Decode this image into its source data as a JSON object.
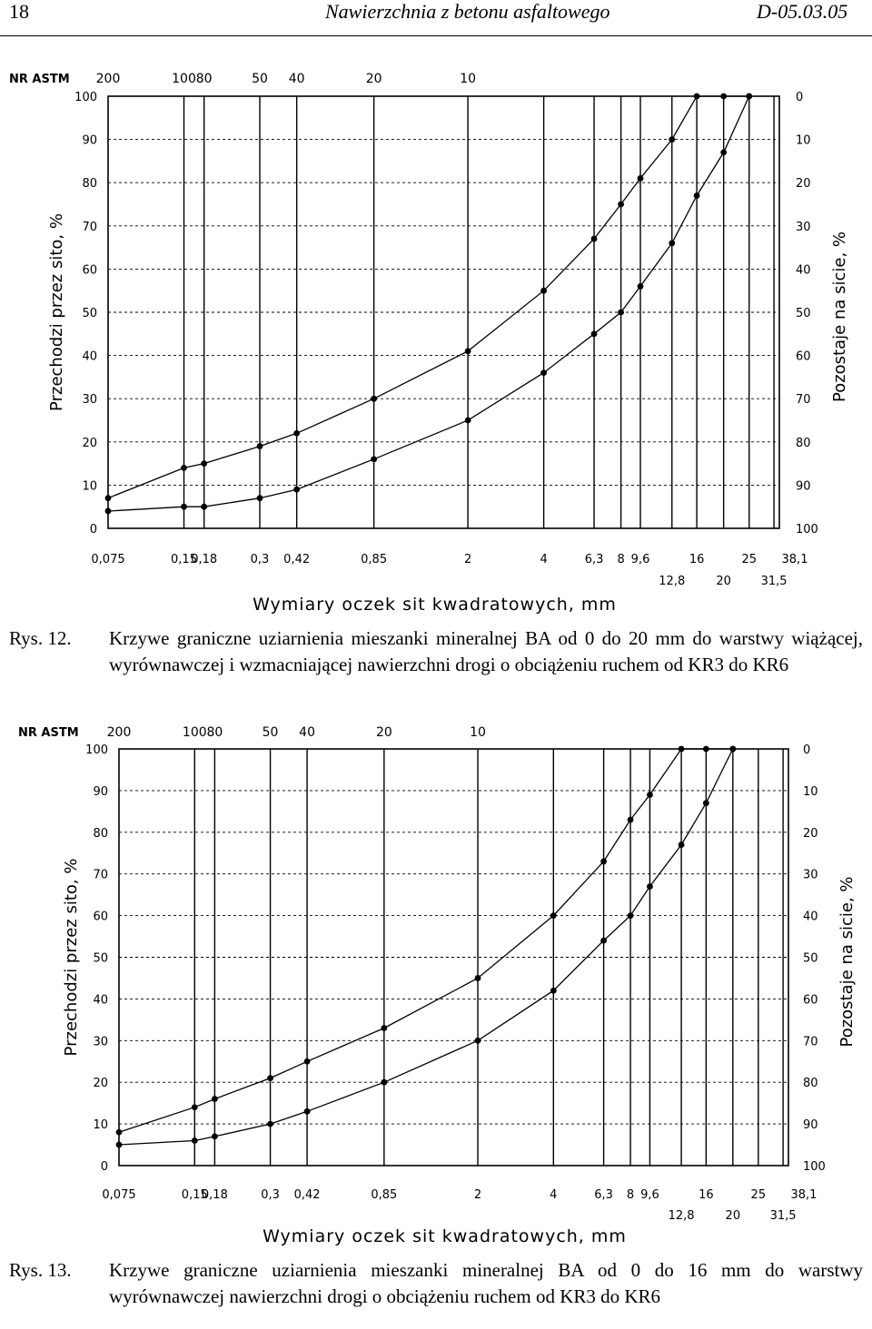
{
  "header": {
    "page_number": "18",
    "title": "Nawierzchnia z betonu asfaltowego",
    "code": "D-05.03.05"
  },
  "figures": [
    {
      "label": "Rys. 12.",
      "caption": "Krzywe graniczne uziarnienia mieszanki mineralnej BA od 0 do 20 mm do warstwy wiążącej, wyrównawczej i wzmacniającej nawierzchni drogi o obciążeniu ruchem od KR3 do KR6"
    },
    {
      "label": "Rys. 13.",
      "caption": "Krzywe graniczne uziarnienia mieszanki mineralnej BA od 0 do 16 mm do warstwy wyrównawczej nawierzchni drogi o obciążeniu ruchem od KR3 do KR6"
    }
  ],
  "chart_data": [
    {
      "type": "line",
      "astm_label": "NR ASTM",
      "astm_numbers": [
        "200",
        "100",
        "80",
        "50",
        "40",
        "20",
        "10"
      ],
      "xlabel": "Wymiary oczek sit kwadratowych, mm",
      "ylabel_left": "Przechodzi przez sito, %",
      "ylabel_right": "Pozostaje na sicie, %",
      "ylim": [
        0,
        100
      ],
      "y_ticks_left": [
        "0",
        "10",
        "20",
        "30",
        "40",
        "50",
        "60",
        "70",
        "80",
        "90",
        "100"
      ],
      "y_ticks_right": [
        "100",
        "90",
        "80",
        "70",
        "60",
        "50",
        "40",
        "30",
        "20",
        "10",
        "0"
      ],
      "x_ticks_row1": [
        "0,075",
        "0,15",
        "0,18",
        "0,3",
        "0,42",
        "0,85",
        "2",
        "4",
        "6,3",
        "8",
        "9,6",
        "16",
        "25",
        "38,1"
      ],
      "x_ticks_row2": [
        "12,8",
        "20",
        "31,5"
      ],
      "series": [
        {
          "x": [
            0.075,
            0.15,
            0.18,
            0.3,
            0.42,
            0.85,
            2,
            4,
            6.3,
            8,
            9.6,
            12.8,
            16,
            20,
            25
          ],
          "y": [
            7,
            14,
            15,
            19,
            22,
            30,
            41,
            55,
            67,
            75,
            81,
            90,
            100,
            100,
            100
          ]
        },
        {
          "x": [
            0.075,
            0.15,
            0.18,
            0.3,
            0.42,
            0.85,
            2,
            4,
            6.3,
            8,
            9.6,
            12.8,
            16,
            20,
            25
          ],
          "y": [
            4,
            5,
            5,
            7,
            9,
            16,
            25,
            36,
            45,
            50,
            56,
            66,
            77,
            87,
            100
          ]
        }
      ]
    },
    {
      "type": "line",
      "astm_label": "NR ASTM",
      "astm_numbers": [
        "200",
        "100",
        "80",
        "50",
        "40",
        "20",
        "10"
      ],
      "xlabel": "Wymiary oczek sit kwadratowych, mm",
      "ylabel_left": "Przechodzi przez sito, %",
      "ylabel_right": "Pozostaje na sicie, %",
      "ylim": [
        0,
        100
      ],
      "y_ticks_left": [
        "0",
        "10",
        "20",
        "30",
        "40",
        "50",
        "60",
        "70",
        "80",
        "90",
        "100"
      ],
      "y_ticks_right": [
        "100",
        "90",
        "80",
        "70",
        "60",
        "50",
        "40",
        "30",
        "20",
        "10",
        "0"
      ],
      "x_ticks_row1": [
        "0,075",
        "0,15",
        "0,18",
        "0,3",
        "0,42",
        "0,85",
        "2",
        "4",
        "6,3",
        "8",
        "9,6",
        "16",
        "25",
        "38,1"
      ],
      "x_ticks_row2": [
        "12,8",
        "20",
        "31,5"
      ],
      "series": [
        {
          "x": [
            0.075,
            0.15,
            0.18,
            0.3,
            0.42,
            0.85,
            2,
            4,
            6.3,
            8,
            9.6,
            12.8,
            16,
            20
          ],
          "y": [
            8,
            14,
            16,
            21,
            25,
            33,
            45,
            60,
            73,
            83,
            89,
            100,
            100,
            100
          ]
        },
        {
          "x": [
            0.075,
            0.15,
            0.18,
            0.3,
            0.42,
            0.85,
            2,
            4,
            6.3,
            8,
            9.6,
            12.8,
            16,
            20
          ],
          "y": [
            5,
            6,
            7,
            10,
            13,
            20,
            30,
            42,
            54,
            60,
            67,
            77,
            87,
            100
          ]
        }
      ]
    }
  ]
}
